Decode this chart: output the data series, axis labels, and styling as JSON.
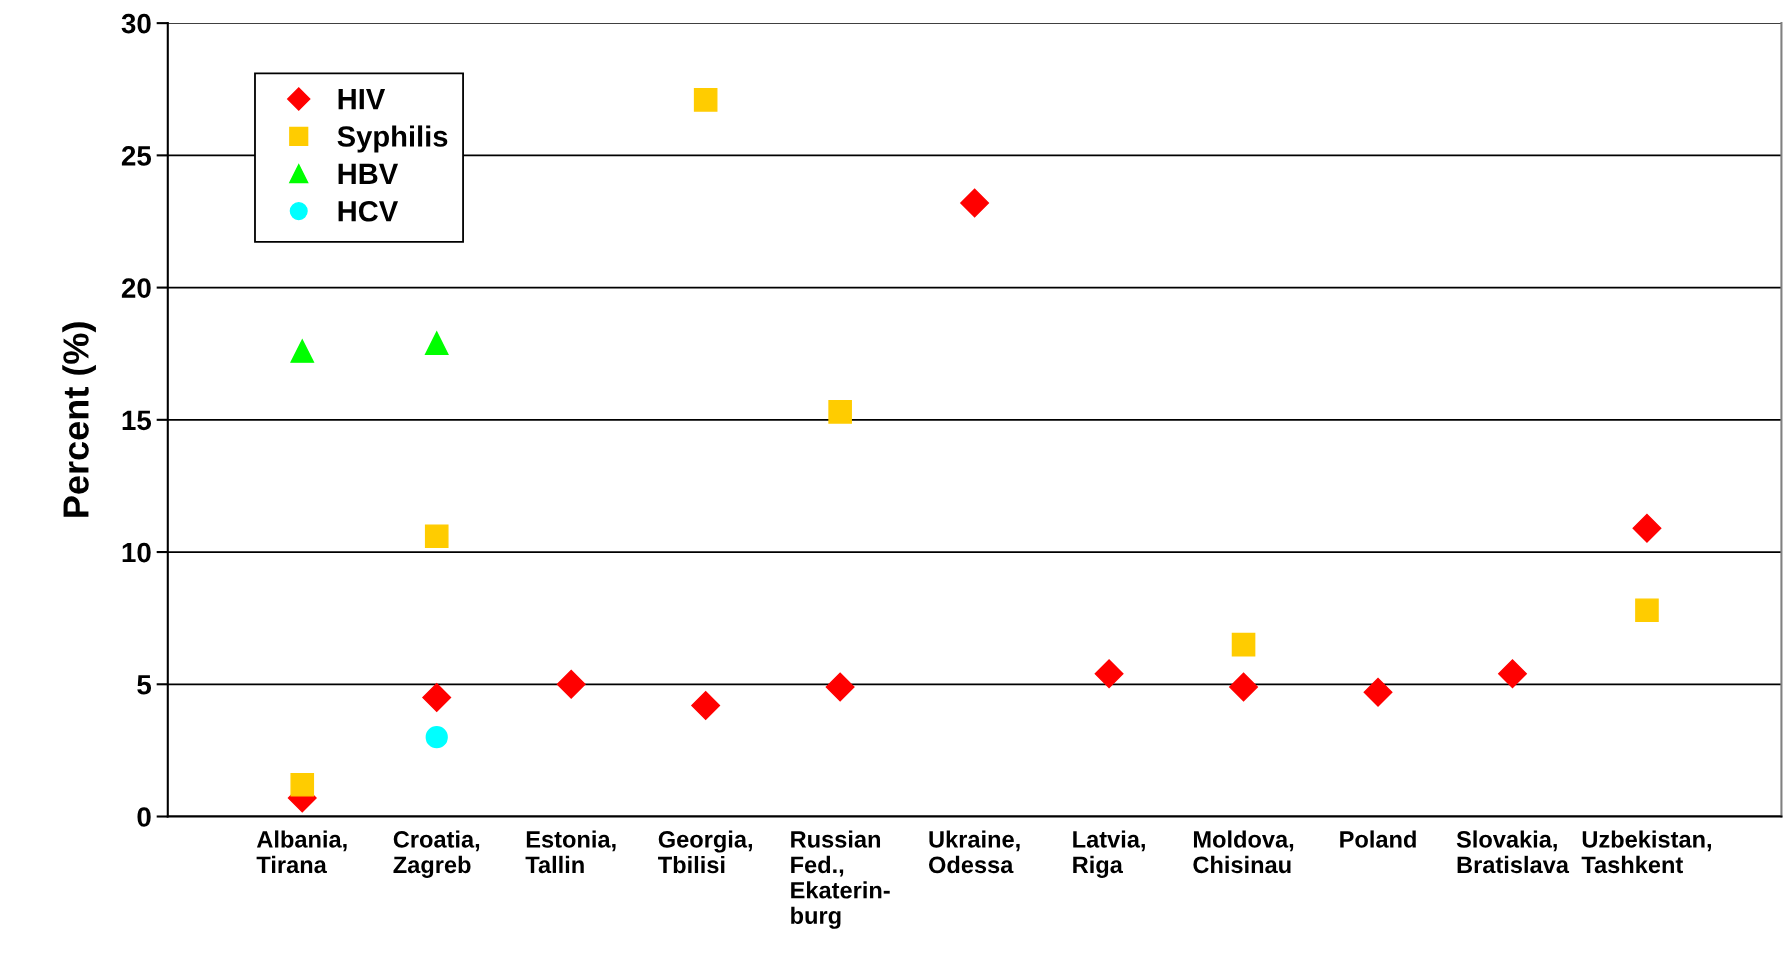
{
  "chart_data": {
    "type": "scatter",
    "ylabel": "Percent (%)",
    "categories": [
      "Albania,\nTirana",
      "Croatia,\nZagreb",
      "Estonia,\nTallin",
      "Georgia,\nTbilisi",
      "Russian\nFed.,\nEkaterin-\nburg",
      "Ukraine,\nOdessa",
      "Latvia,\nRiga",
      "Moldova,\nChisinau",
      "Poland",
      "Slovakia,\nBratislava",
      "Uzbekistan,\nTashkent"
    ],
    "series": [
      {
        "name": "HIV",
        "color": "#ff0000",
        "marker": "diamond",
        "values": [
          0.7,
          4.5,
          5.0,
          4.2,
          4.9,
          23.2,
          5.4,
          4.9,
          4.7,
          5.4,
          10.9
        ]
      },
      {
        "name": "Syphilis",
        "color": "#ffcc00",
        "marker": "square",
        "values": [
          1.2,
          10.6,
          null,
          27.1,
          15.3,
          null,
          null,
          6.5,
          null,
          null,
          7.8
        ]
      },
      {
        "name": "HBV",
        "color": "#00ff00",
        "marker": "triangle",
        "values": [
          17.6,
          17.9,
          null,
          null,
          null,
          null,
          null,
          null,
          null,
          null,
          null
        ]
      },
      {
        "name": "HCV",
        "color": "#00ffff",
        "marker": "circle",
        "values": [
          null,
          3.0,
          null,
          null,
          null,
          null,
          null,
          null,
          null,
          null,
          null
        ]
      }
    ],
    "ylim": [
      0,
      30
    ],
    "yticks": [
      0,
      5,
      10,
      15,
      20,
      25,
      30
    ],
    "grid": "y",
    "legend": "top left"
  }
}
